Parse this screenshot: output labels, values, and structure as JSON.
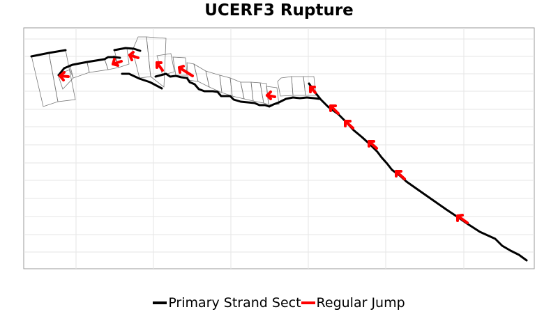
{
  "title": "UCERF3 Rupture",
  "legend": {
    "items": [
      {
        "label": "Primary Strand Sect",
        "color": "#000000"
      },
      {
        "label": "Regular Jump",
        "color": "#ff0000"
      }
    ]
  },
  "colors": {
    "trace": "#000000",
    "jump": "#ff0000",
    "outline": "#777777",
    "grid": "#e6e6e6",
    "frame": "#999999"
  }
}
